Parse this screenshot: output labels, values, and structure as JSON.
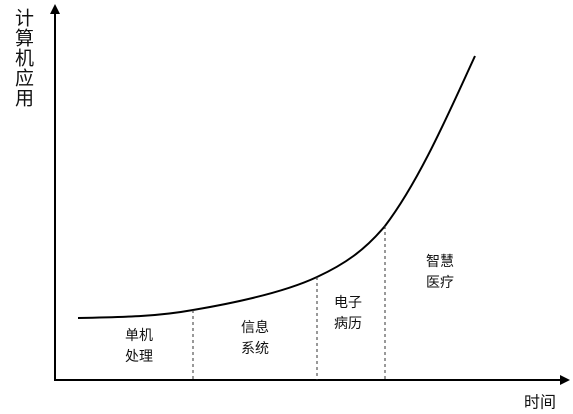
{
  "axes": {
    "y_label": "计算机应用",
    "x_label": "时间"
  },
  "stages": [
    {
      "lines": [
        "单机",
        "处理"
      ]
    },
    {
      "lines": [
        "信息",
        "系统"
      ]
    },
    {
      "lines": [
        "电子",
        "病历"
      ]
    },
    {
      "lines": [
        "智慧",
        "医疗"
      ]
    }
  ]
}
